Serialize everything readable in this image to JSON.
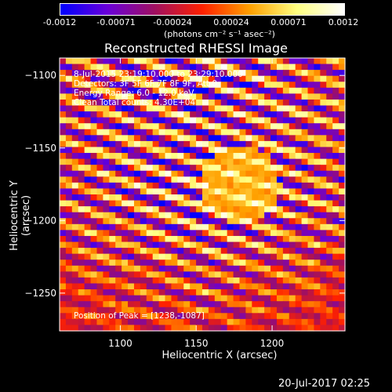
{
  "colorbar": {
    "ticks": [
      "-0.0012",
      "-0.00071",
      "-0.00024",
      "0.00024",
      "0.00071",
      "0.0012"
    ],
    "units": "(photons cm⁻² s⁻¹ asec⁻²)",
    "colors": [
      "#0000ff",
      "#6a00d8",
      "#a01060",
      "#ff2000",
      "#ffa000",
      "#ffff80",
      "#ffffff"
    ]
  },
  "chart_data": {
    "type": "heatmap",
    "title": "Reconstructed RHESSI Image",
    "xlabel": "Heliocentric X (arcsec)",
    "ylabel": "Heliocentric Y (arcsec)",
    "xlim": [
      1060,
      1248
    ],
    "ylim": [
      -1276,
      -1088
    ],
    "xticks": [
      1100,
      1150,
      1200
    ],
    "yticks": [
      -1100,
      -1150,
      -1200,
      -1250
    ],
    "value_range": [
      -0.0012,
      0.0012
    ],
    "peak": [
      1238,
      -1087
    ],
    "annotations": {
      "time_range": "8-Jul-2015 23:19:10.000 to 23:29:10.000",
      "detectors": "Detectors: 3F 5F 6F 7F 8F 9F, Att 0",
      "energy": "Energy Range: 6.0 - 12.0 keV",
      "clean": "Clean    Total counts: 4.30E+04",
      "peak_label": "Position of Peak = [1238,-1087]"
    }
  },
  "footer": {
    "timestamp": "20-Jul-2017 02:25"
  }
}
